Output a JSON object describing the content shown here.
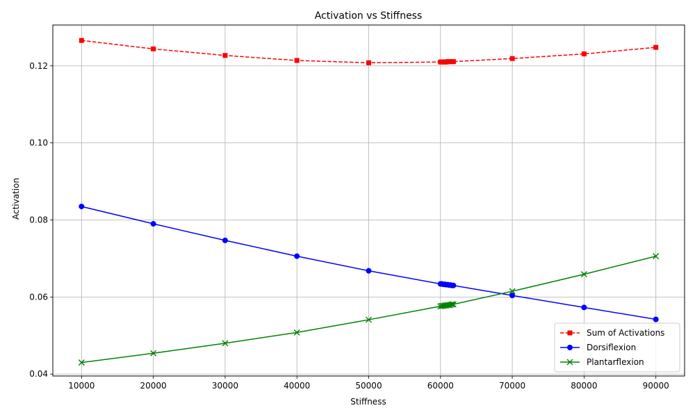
{
  "chart_data": {
    "type": "line",
    "title": "Activation vs Stiffness",
    "xlabel": "Stiffness",
    "ylabel": "Activation",
    "xlim": [
      6000,
      94000
    ],
    "ylim": [
      0.0395,
      0.1306
    ],
    "xticks": [
      10000,
      20000,
      30000,
      40000,
      50000,
      60000,
      70000,
      80000,
      90000
    ],
    "yticks": [
      0.04,
      0.06,
      0.08,
      0.1,
      0.12
    ],
    "ytick_labels": [
      "0.04",
      "0.06",
      "0.08",
      "0.10",
      "0.12"
    ],
    "grid": true,
    "legend_position": "lower-right",
    "x": [
      10000,
      20000,
      30000,
      40000,
      50000,
      60000,
      60200,
      60400,
      60600,
      60800,
      61000,
      61200,
      61400,
      61600,
      61800,
      70000,
      80000,
      90000
    ],
    "series": [
      {
        "name": "Sum of Activations",
        "color": "#ff0000",
        "line_style": "dashed",
        "marker": "square",
        "values": [
          0.1266,
          0.1244,
          0.1227,
          0.1214,
          0.1208,
          0.121,
          0.121,
          0.121,
          0.121,
          0.121,
          0.1211,
          0.1211,
          0.1211,
          0.1211,
          0.1211,
          0.1219,
          0.1231,
          0.1248
        ]
      },
      {
        "name": "Dorsiflexion",
        "color": "#0000ff",
        "line_style": "solid",
        "marker": "circle",
        "values": [
          0.0835,
          0.079,
          0.0747,
          0.0706,
          0.0668,
          0.0634,
          0.0634,
          0.0633,
          0.0633,
          0.0632,
          0.0632,
          0.0631,
          0.0631,
          0.063,
          0.063,
          0.0604,
          0.0573,
          0.0542
        ]
      },
      {
        "name": "Plantarflexion",
        "color": "#008000",
        "line_style": "solid",
        "marker": "x",
        "values": [
          0.043,
          0.0454,
          0.048,
          0.0508,
          0.0541,
          0.0576,
          0.0577,
          0.0577,
          0.0578,
          0.0578,
          0.0579,
          0.0579,
          0.058,
          0.0581,
          0.0581,
          0.0615,
          0.0659,
          0.0706
        ]
      }
    ]
  }
}
